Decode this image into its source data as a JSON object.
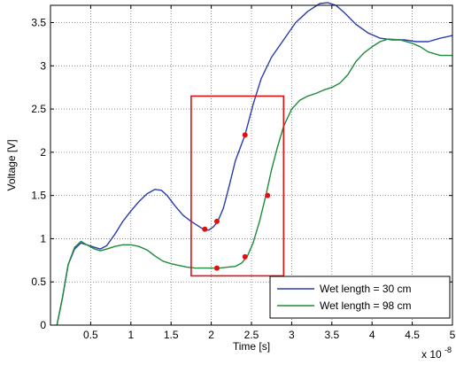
{
  "chart_data": {
    "type": "line",
    "xlabel": "Time [s]",
    "ylabel": "Voltage [V]",
    "x_multiplier": "x 10",
    "x_multiplier_exp": "-8",
    "xlim": [
      0,
      5
    ],
    "ylim": [
      0,
      3.7
    ],
    "x_ticks": [
      0.5,
      1,
      1.5,
      2,
      2.5,
      3,
      3.5,
      4,
      4.5,
      5
    ],
    "x_tick_labels": [
      "0.5",
      "1",
      "1.5",
      "2",
      "2.5",
      "3",
      "3.5",
      "4",
      "4.5",
      "5"
    ],
    "y_ticks": [
      0,
      0.5,
      1,
      1.5,
      2,
      2.5,
      3,
      3.5
    ],
    "y_tick_labels": [
      "0",
      "0.5",
      "1",
      "1.5",
      "2",
      "2.5",
      "3",
      "3.5"
    ],
    "grid": true,
    "legend_position": "bottom-right",
    "series": [
      {
        "name": "Wet length = 30 cm",
        "color": "#2a3cb0",
        "x": [
          0.08,
          0.15,
          0.22,
          0.3,
          0.38,
          0.45,
          0.55,
          0.62,
          0.7,
          0.8,
          0.9,
          1.0,
          1.1,
          1.2,
          1.3,
          1.38,
          1.45,
          1.55,
          1.65,
          1.75,
          1.85,
          1.92,
          1.97,
          2.03,
          2.08,
          2.15,
          2.22,
          2.3,
          2.42,
          2.52,
          2.62,
          2.75,
          2.9,
          3.05,
          3.2,
          3.35,
          3.45,
          3.55,
          3.65,
          3.8,
          3.95,
          4.1,
          4.25,
          4.4,
          4.55,
          4.7,
          4.85,
          5.0
        ],
        "y": [
          0.0,
          0.32,
          0.7,
          0.88,
          0.95,
          0.93,
          0.9,
          0.88,
          0.92,
          1.05,
          1.2,
          1.32,
          1.43,
          1.52,
          1.57,
          1.56,
          1.5,
          1.38,
          1.27,
          1.2,
          1.14,
          1.1,
          1.1,
          1.14,
          1.2,
          1.35,
          1.6,
          1.9,
          2.2,
          2.55,
          2.85,
          3.1,
          3.3,
          3.5,
          3.63,
          3.72,
          3.73,
          3.7,
          3.62,
          3.48,
          3.38,
          3.32,
          3.3,
          3.3,
          3.28,
          3.28,
          3.32,
          3.35
        ]
      },
      {
        "name": "Wet length = 98 cm",
        "color": "#1f8a3a",
        "x": [
          0.08,
          0.15,
          0.22,
          0.3,
          0.38,
          0.45,
          0.55,
          0.62,
          0.7,
          0.8,
          0.9,
          1.0,
          1.1,
          1.2,
          1.3,
          1.4,
          1.5,
          1.6,
          1.7,
          1.8,
          1.9,
          2.0,
          2.1,
          2.2,
          2.3,
          2.38,
          2.45,
          2.52,
          2.6,
          2.68,
          2.75,
          2.82,
          2.9,
          3.0,
          3.1,
          3.2,
          3.3,
          3.4,
          3.5,
          3.6,
          3.7,
          3.8,
          3.9,
          4.0,
          4.1,
          4.2,
          4.35,
          4.5,
          4.6,
          4.7,
          4.85,
          5.0
        ],
        "y": [
          0.0,
          0.32,
          0.7,
          0.9,
          0.97,
          0.93,
          0.88,
          0.86,
          0.88,
          0.91,
          0.93,
          0.93,
          0.91,
          0.87,
          0.8,
          0.74,
          0.71,
          0.69,
          0.67,
          0.66,
          0.66,
          0.66,
          0.66,
          0.67,
          0.68,
          0.72,
          0.8,
          0.95,
          1.2,
          1.5,
          1.8,
          2.05,
          2.3,
          2.5,
          2.6,
          2.65,
          2.68,
          2.72,
          2.75,
          2.8,
          2.9,
          3.05,
          3.15,
          3.22,
          3.28,
          3.31,
          3.3,
          3.26,
          3.22,
          3.16,
          3.12,
          3.12
        ]
      }
    ],
    "markers": {
      "color": "#e01010",
      "points": [
        {
          "x": 1.92,
          "y": 1.11
        },
        {
          "x": 2.07,
          "y": 1.2
        },
        {
          "x": 2.42,
          "y": 2.2
        },
        {
          "x": 2.07,
          "y": 0.66
        },
        {
          "x": 2.42,
          "y": 0.79
        },
        {
          "x": 2.7,
          "y": 1.5
        }
      ]
    },
    "highlight_box": {
      "color": "#e01010",
      "x": [
        1.75,
        2.9
      ],
      "y": [
        0.57,
        2.65
      ]
    }
  }
}
